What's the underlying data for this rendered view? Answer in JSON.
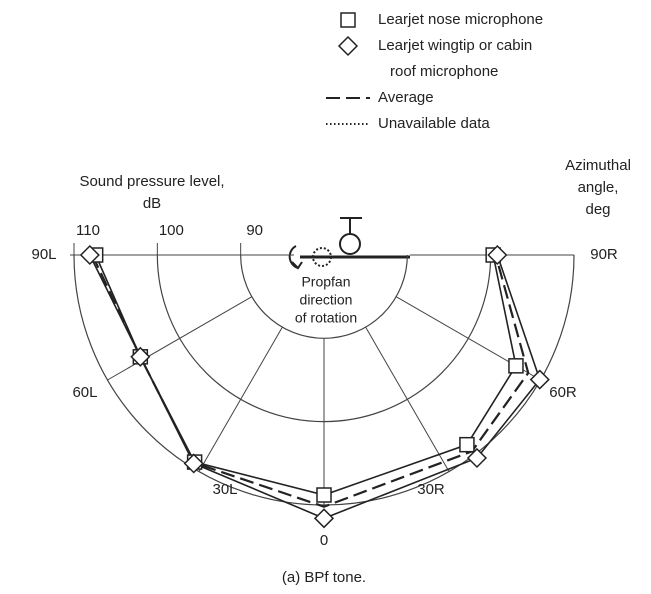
{
  "chart_data": {
    "type": "polar",
    "legend_title_lines": [],
    "axis_label_r": [
      "Sound pressure level,",
      "dB"
    ],
    "axis_label_theta": [
      "Azimuthal",
      "angle,",
      "deg"
    ],
    "annotation": [
      "Propfan",
      "direction",
      "of rotation"
    ],
    "caption": "(a) BPf tone.",
    "x": [
      -90,
      -61,
      -32,
      0,
      37,
      60,
      90
    ],
    "xlim": [
      -90,
      90
    ],
    "xticks": [
      {
        "value": -90,
        "label": "90L"
      },
      {
        "value": -60,
        "label": "60L"
      },
      {
        "value": -30,
        "label": "30L"
      },
      0,
      {
        "value": 30,
        "label": "30R"
      },
      {
        "value": 60,
        "label": "60R"
      },
      {
        "value": 90,
        "label": "90R"
      }
    ],
    "rlim": [
      80,
      110
    ],
    "rticks": [
      90,
      100,
      110
    ],
    "grid": true,
    "series": [
      {
        "name": [
          "Learjet nose microphone"
        ],
        "marker": "square",
        "color": "#222222",
        "values": [
          107.4,
          105.2,
          109.3,
          108.8,
          108.5,
          106.6,
          100.3
        ]
      },
      {
        "name": [
          "Learjet wingtip or cabin",
          "roof microphone"
        ],
        "marker": "diamond",
        "color": "#222222",
        "values": [
          108.1,
          105.2,
          109.5,
          111.6,
          110.5,
          109.9,
          100.8
        ]
      },
      {
        "name": [
          "Average"
        ],
        "line": "dashed",
        "color": "#222222",
        "values": [
          107.8,
          105.2,
          109.4,
          110.2,
          109.5,
          108.3,
          100.6
        ]
      },
      {
        "name": [
          "Unavailable data"
        ],
        "line": "dotted",
        "color": "#222222",
        "values": [
          null,
          null,
          null,
          null,
          null,
          null,
          null
        ]
      }
    ]
  }
}
